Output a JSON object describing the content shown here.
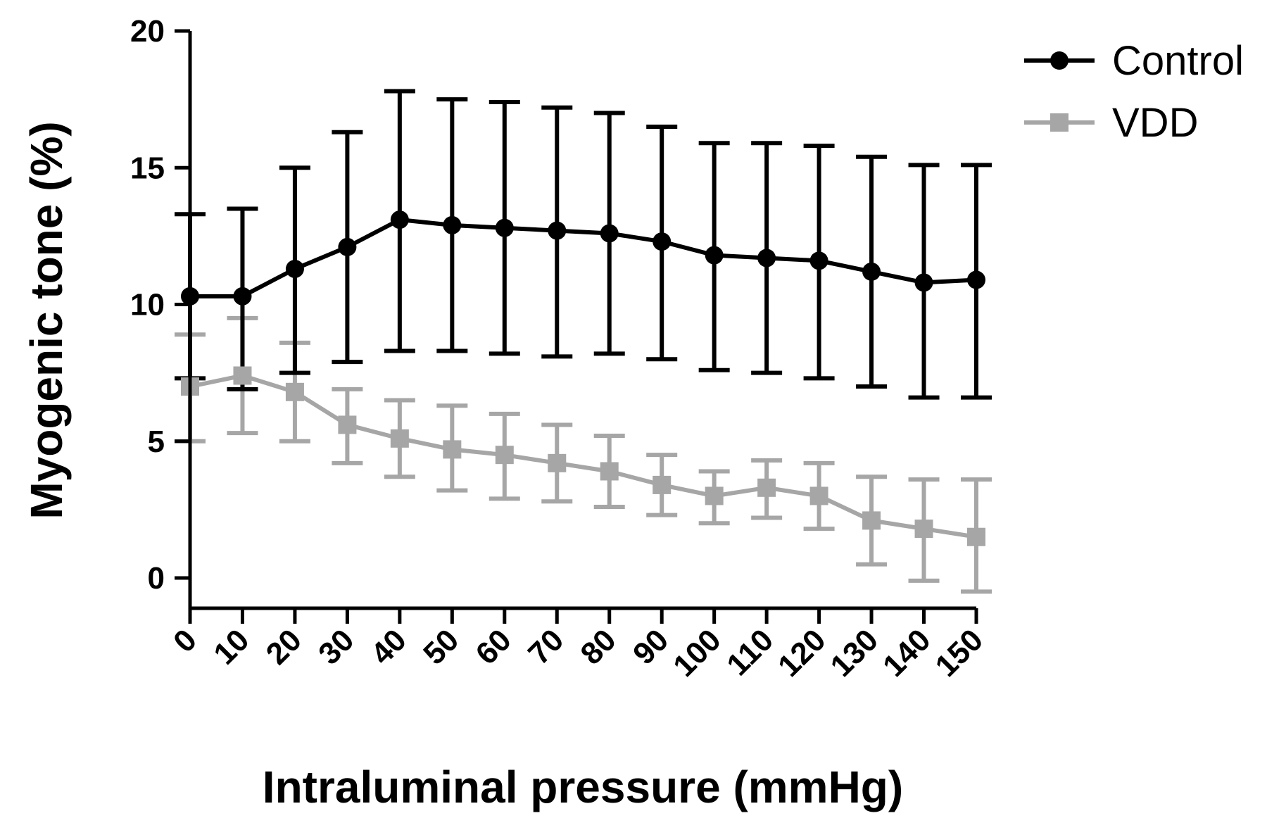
{
  "chart_data": {
    "type": "line",
    "title": "",
    "xlabel": "Intraluminal pressure (mmHg)",
    "ylabel": "Myogenic tone (%)",
    "x": [
      0,
      10,
      20,
      30,
      40,
      50,
      60,
      70,
      80,
      90,
      100,
      110,
      120,
      130,
      140,
      150
    ],
    "xticks": [
      "0",
      "10",
      "20",
      "30",
      "40",
      "50",
      "60",
      "70",
      "80",
      "90",
      "100",
      "110",
      "120",
      "130",
      "140",
      "150"
    ],
    "ylim": [
      -1,
      20
    ],
    "yticks": [
      "0",
      "5",
      "10",
      "15",
      "20"
    ],
    "grid": false,
    "legend_position": "top-right",
    "series": [
      {
        "name": "Control",
        "color": "#000000",
        "marker": "circle",
        "values": [
          10.3,
          10.3,
          11.3,
          12.1,
          13.1,
          12.9,
          12.8,
          12.7,
          12.6,
          12.3,
          11.8,
          11.7,
          11.6,
          11.2,
          10.8,
          10.9
        ],
        "error_upper": [
          13.3,
          13.5,
          15.0,
          16.3,
          17.8,
          17.5,
          17.4,
          17.2,
          17.0,
          16.5,
          15.9,
          15.9,
          15.8,
          15.4,
          15.1,
          15.1
        ],
        "error_lower": [
          7.3,
          6.9,
          7.5,
          7.9,
          8.3,
          8.3,
          8.2,
          8.1,
          8.2,
          8.0,
          7.6,
          7.5,
          7.3,
          7.0,
          6.6,
          6.6
        ]
      },
      {
        "name": "VDD",
        "color": "#a6a6a6",
        "marker": "square",
        "values": [
          7.0,
          7.4,
          6.8,
          5.6,
          5.1,
          4.7,
          4.5,
          4.2,
          3.9,
          3.4,
          3.0,
          3.3,
          3.0,
          2.1,
          1.8,
          1.5
        ],
        "error_upper": [
          8.9,
          9.5,
          8.6,
          6.9,
          6.5,
          6.3,
          6.0,
          5.6,
          5.2,
          4.5,
          3.9,
          4.3,
          4.2,
          3.7,
          3.6,
          3.6
        ],
        "error_lower": [
          5.0,
          5.3,
          5.0,
          4.2,
          3.7,
          3.2,
          2.9,
          2.8,
          2.6,
          2.3,
          2.0,
          2.2,
          1.8,
          0.5,
          -0.1,
          -0.5
        ]
      }
    ]
  }
}
